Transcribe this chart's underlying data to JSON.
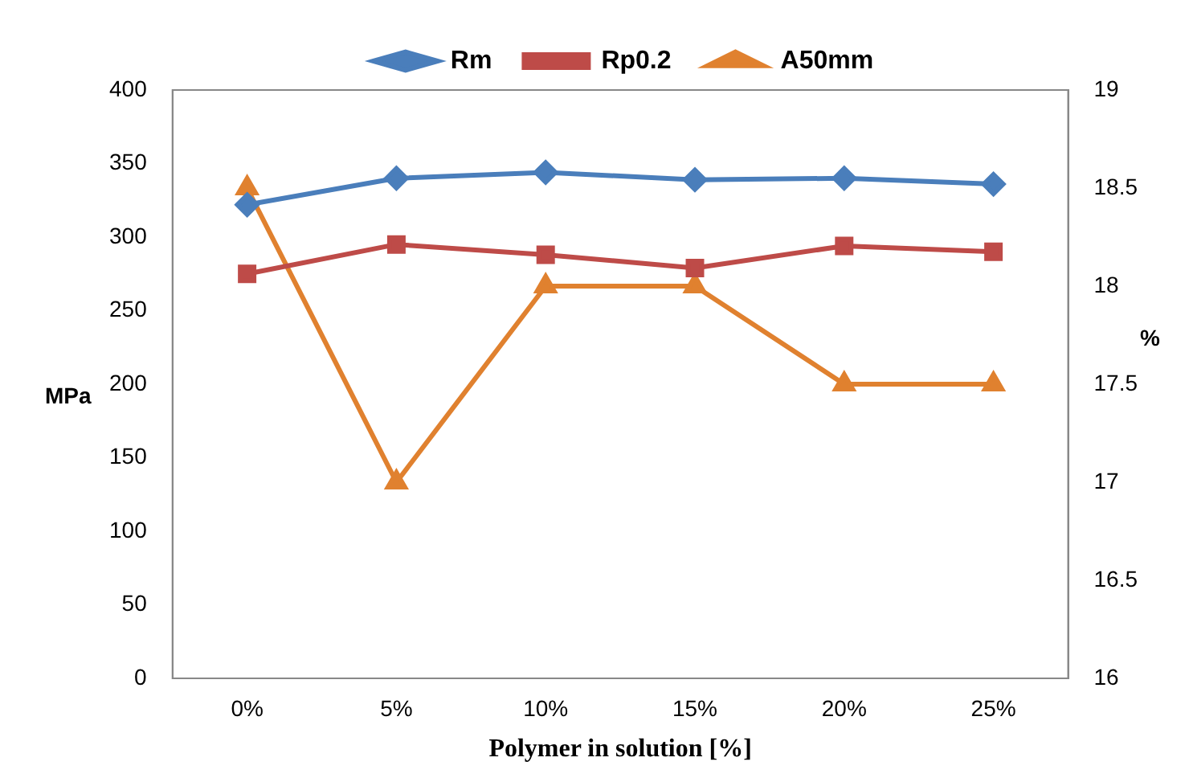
{
  "chart_data": {
    "type": "line",
    "xlabel": "Polymer in solution [%]",
    "ylabel": "MPa",
    "y2label": "%",
    "categories": [
      "0%",
      "5%",
      "10%",
      "15%",
      "20%",
      "25%"
    ],
    "series": [
      {
        "name": "Rm",
        "color": "#4a7ebb",
        "marker": "diamond",
        "values": [
          322,
          340,
          344,
          339,
          340,
          336
        ]
      },
      {
        "name": "Rp0.2",
        "color": "#be4b48",
        "marker": "square",
        "values": [
          275,
          295,
          288,
          279,
          294,
          290
        ]
      },
      {
        "name": "A50mm",
        "color": "#e0812f",
        "marker": "triangle",
        "axis": "y2",
        "values": [
          18.5,
          17,
          18,
          18,
          17.5,
          17.5
        ]
      }
    ],
    "ylim": [
      0,
      400
    ],
    "yticks": [
      0,
      50,
      100,
      150,
      200,
      250,
      300,
      350,
      400
    ],
    "y2lim": [
      16,
      19
    ],
    "y2ticks": [
      16,
      16.5,
      17,
      17.5,
      18,
      18.5,
      19
    ],
    "grid": false,
    "legend": "top",
    "line_style": "solid"
  }
}
